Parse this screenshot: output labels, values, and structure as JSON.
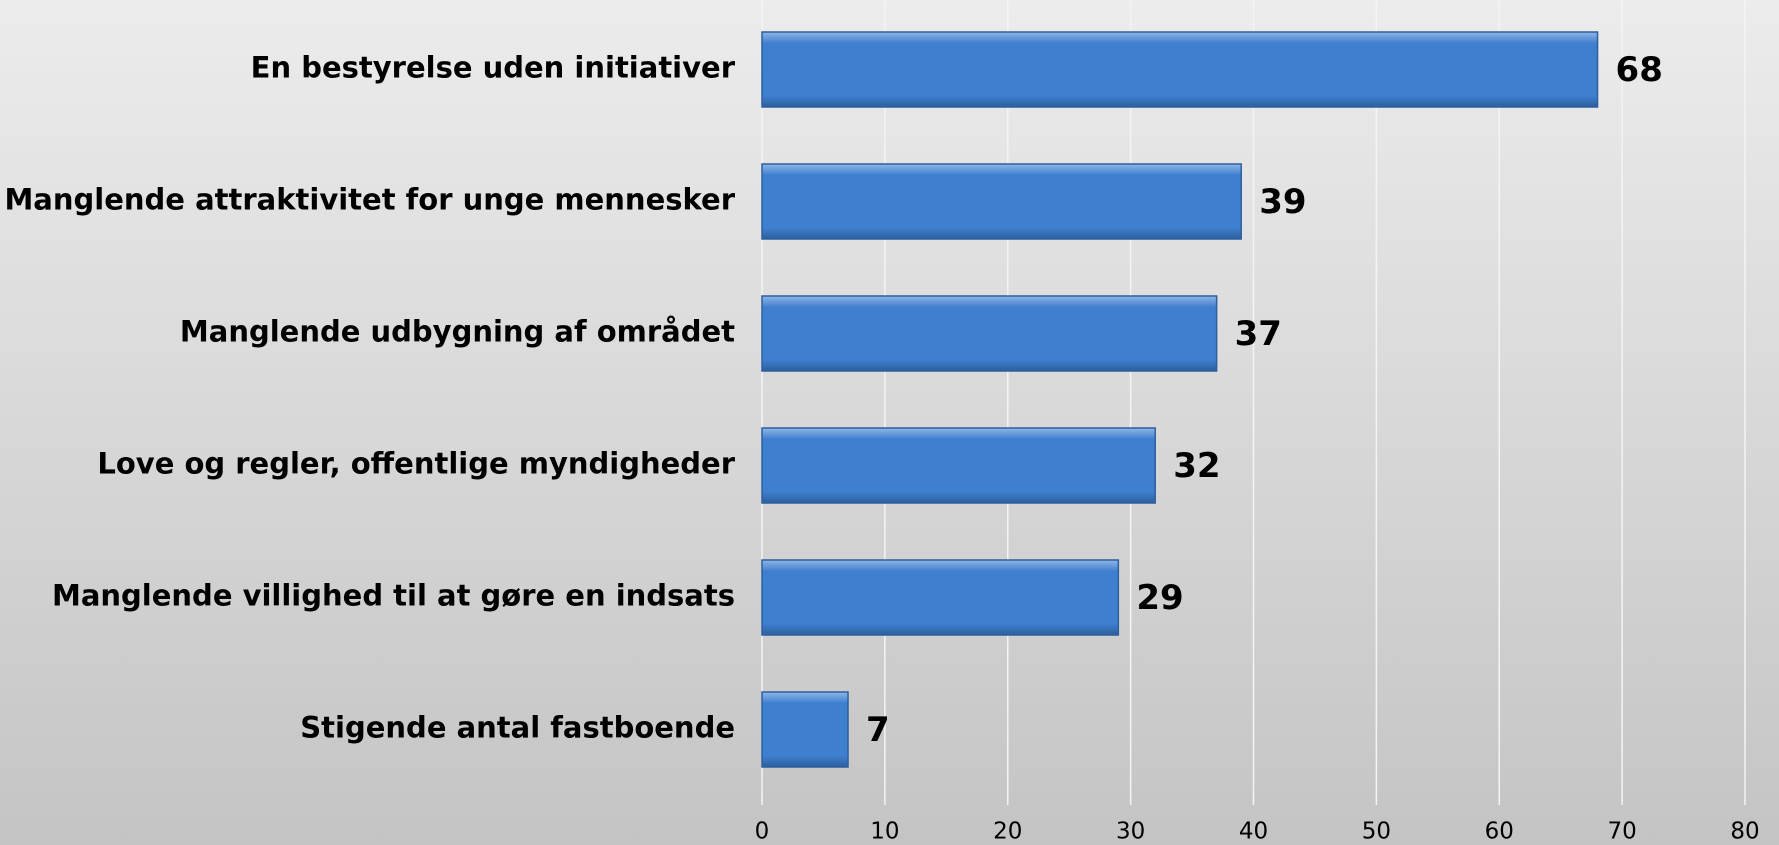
{
  "chart_data": {
    "type": "bar",
    "orientation": "horizontal",
    "categories": [
      "En bestyrelse uden initiativer",
      "Manglende attraktivitet for unge mennesker",
      "Manglende udbygning af området",
      "Love og regler, offentlige myndigheder",
      "Manglende villighed til at gøre en indsats",
      "Stigende antal fastboende"
    ],
    "values": [
      68,
      39,
      37,
      32,
      29,
      7
    ],
    "color": "#3f7fcf",
    "xlim": [
      0,
      80
    ],
    "xticks": [
      0,
      10,
      20,
      30,
      40,
      50,
      60,
      70,
      80
    ],
    "grid": true
  }
}
